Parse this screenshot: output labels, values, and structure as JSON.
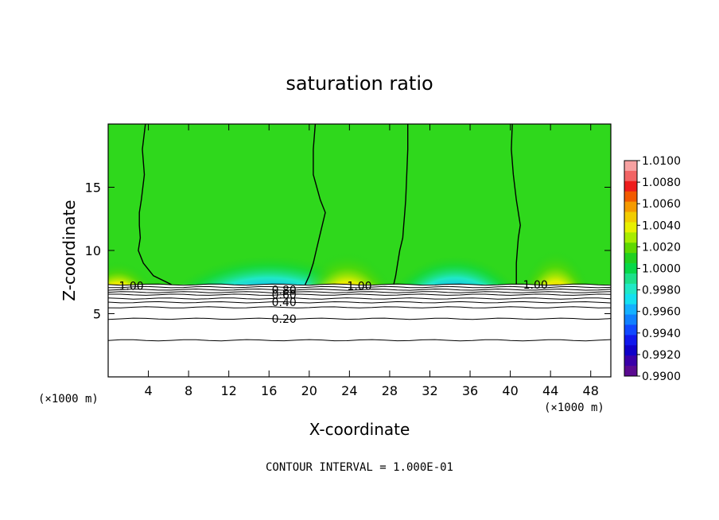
{
  "chart_data": {
    "type": "heatmap",
    "title": "saturation ratio",
    "xlabel": "X-coordinate",
    "ylabel": "Z-coordinate",
    "x_unit_left": "(×1000 m)",
    "x_unit_right": "(×1000 m)",
    "xlim": [
      0,
      50
    ],
    "ylim": [
      0,
      20
    ],
    "x_ticks": [
      4,
      8,
      12,
      16,
      20,
      24,
      28,
      32,
      36,
      40,
      44,
      48
    ],
    "y_ticks": [
      5,
      10,
      15
    ],
    "footer": "CONTOUR INTERVAL = 1.000E-01",
    "colorbar": {
      "min": 0.99,
      "max": 1.01,
      "labels": [
        "1.0100",
        "1.0080",
        "1.0060",
        "1.0040",
        "1.0020",
        "1.0000",
        "0.9980",
        "0.9960",
        "0.9940",
        "0.9920",
        "0.9900"
      ],
      "colors": [
        "#f7a1a1",
        "#f26464",
        "#ee1c1c",
        "#f25a00",
        "#f59a00",
        "#f2cc00",
        "#e8f000",
        "#a8ec00",
        "#5ed800",
        "#22d020",
        "#08d848",
        "#1ce08a",
        "#20e8c6",
        "#14e0f0",
        "#14b0ff",
        "#1080ff",
        "#1048ff",
        "#1018ec",
        "#1000c8",
        "#3a00a8",
        "#5a0a90"
      ]
    },
    "contour_labels": [
      {
        "text": "1.00",
        "x": 2.3,
        "y": 7.2
      },
      {
        "text": "1.00",
        "x": 25.0,
        "y": 7.2
      },
      {
        "text": "1.00",
        "x": 42.5,
        "y": 7.3
      },
      {
        "text": "0.80",
        "x": 17.5,
        "y": 6.9
      },
      {
        "text": "0.60",
        "x": 17.5,
        "y": 6.5
      },
      {
        "text": "0.40",
        "x": 17.5,
        "y": 5.9
      },
      {
        "text": "0.20",
        "x": 17.5,
        "y": 4.6
      }
    ],
    "saturation_contours_x": [
      [
        3.7,
        3.4,
        3.6,
        3.3,
        3.1,
        3.1,
        3.2,
        3.0,
        3.5,
        4.5,
        6.3
      ],
      [
        20.6,
        20.4,
        20.4,
        21.1,
        21.6,
        21.3,
        21.0,
        20.7,
        20.4,
        20.0,
        19.6
      ],
      [
        29.8,
        29.8,
        29.7,
        29.6,
        29.5,
        29.4,
        29.3,
        29.0,
        28.8,
        28.6,
        28.4
      ],
      [
        40.2,
        40.1,
        40.3,
        40.6,
        40.8,
        41.0,
        40.8,
        40.7,
        40.6,
        40.6,
        40.6
      ]
    ],
    "saturation_contours_y": [
      20,
      18,
      16,
      14,
      13,
      12,
      11,
      10,
      9,
      8,
      7.3
    ],
    "stratified_contours_y": [
      7.3,
      7.1,
      6.9,
      6.7,
      6.5,
      6.2,
      5.9,
      5.5,
      4.6,
      2.9
    ],
    "plumes": [
      {
        "center": 1.0,
        "width": 3.5,
        "top": 11.0,
        "kind": "super"
      },
      {
        "center": 16.0,
        "width": 10.0,
        "top": 12.5,
        "kind": "sub"
      },
      {
        "center": 23.8,
        "width": 4.5,
        "top": 12.5,
        "kind": "super"
      },
      {
        "center": 34.5,
        "width": 6.5,
        "top": 12.5,
        "kind": "sub"
      },
      {
        "center": 44.5,
        "width": 3.5,
        "top": 12.8,
        "kind": "super"
      }
    ]
  }
}
